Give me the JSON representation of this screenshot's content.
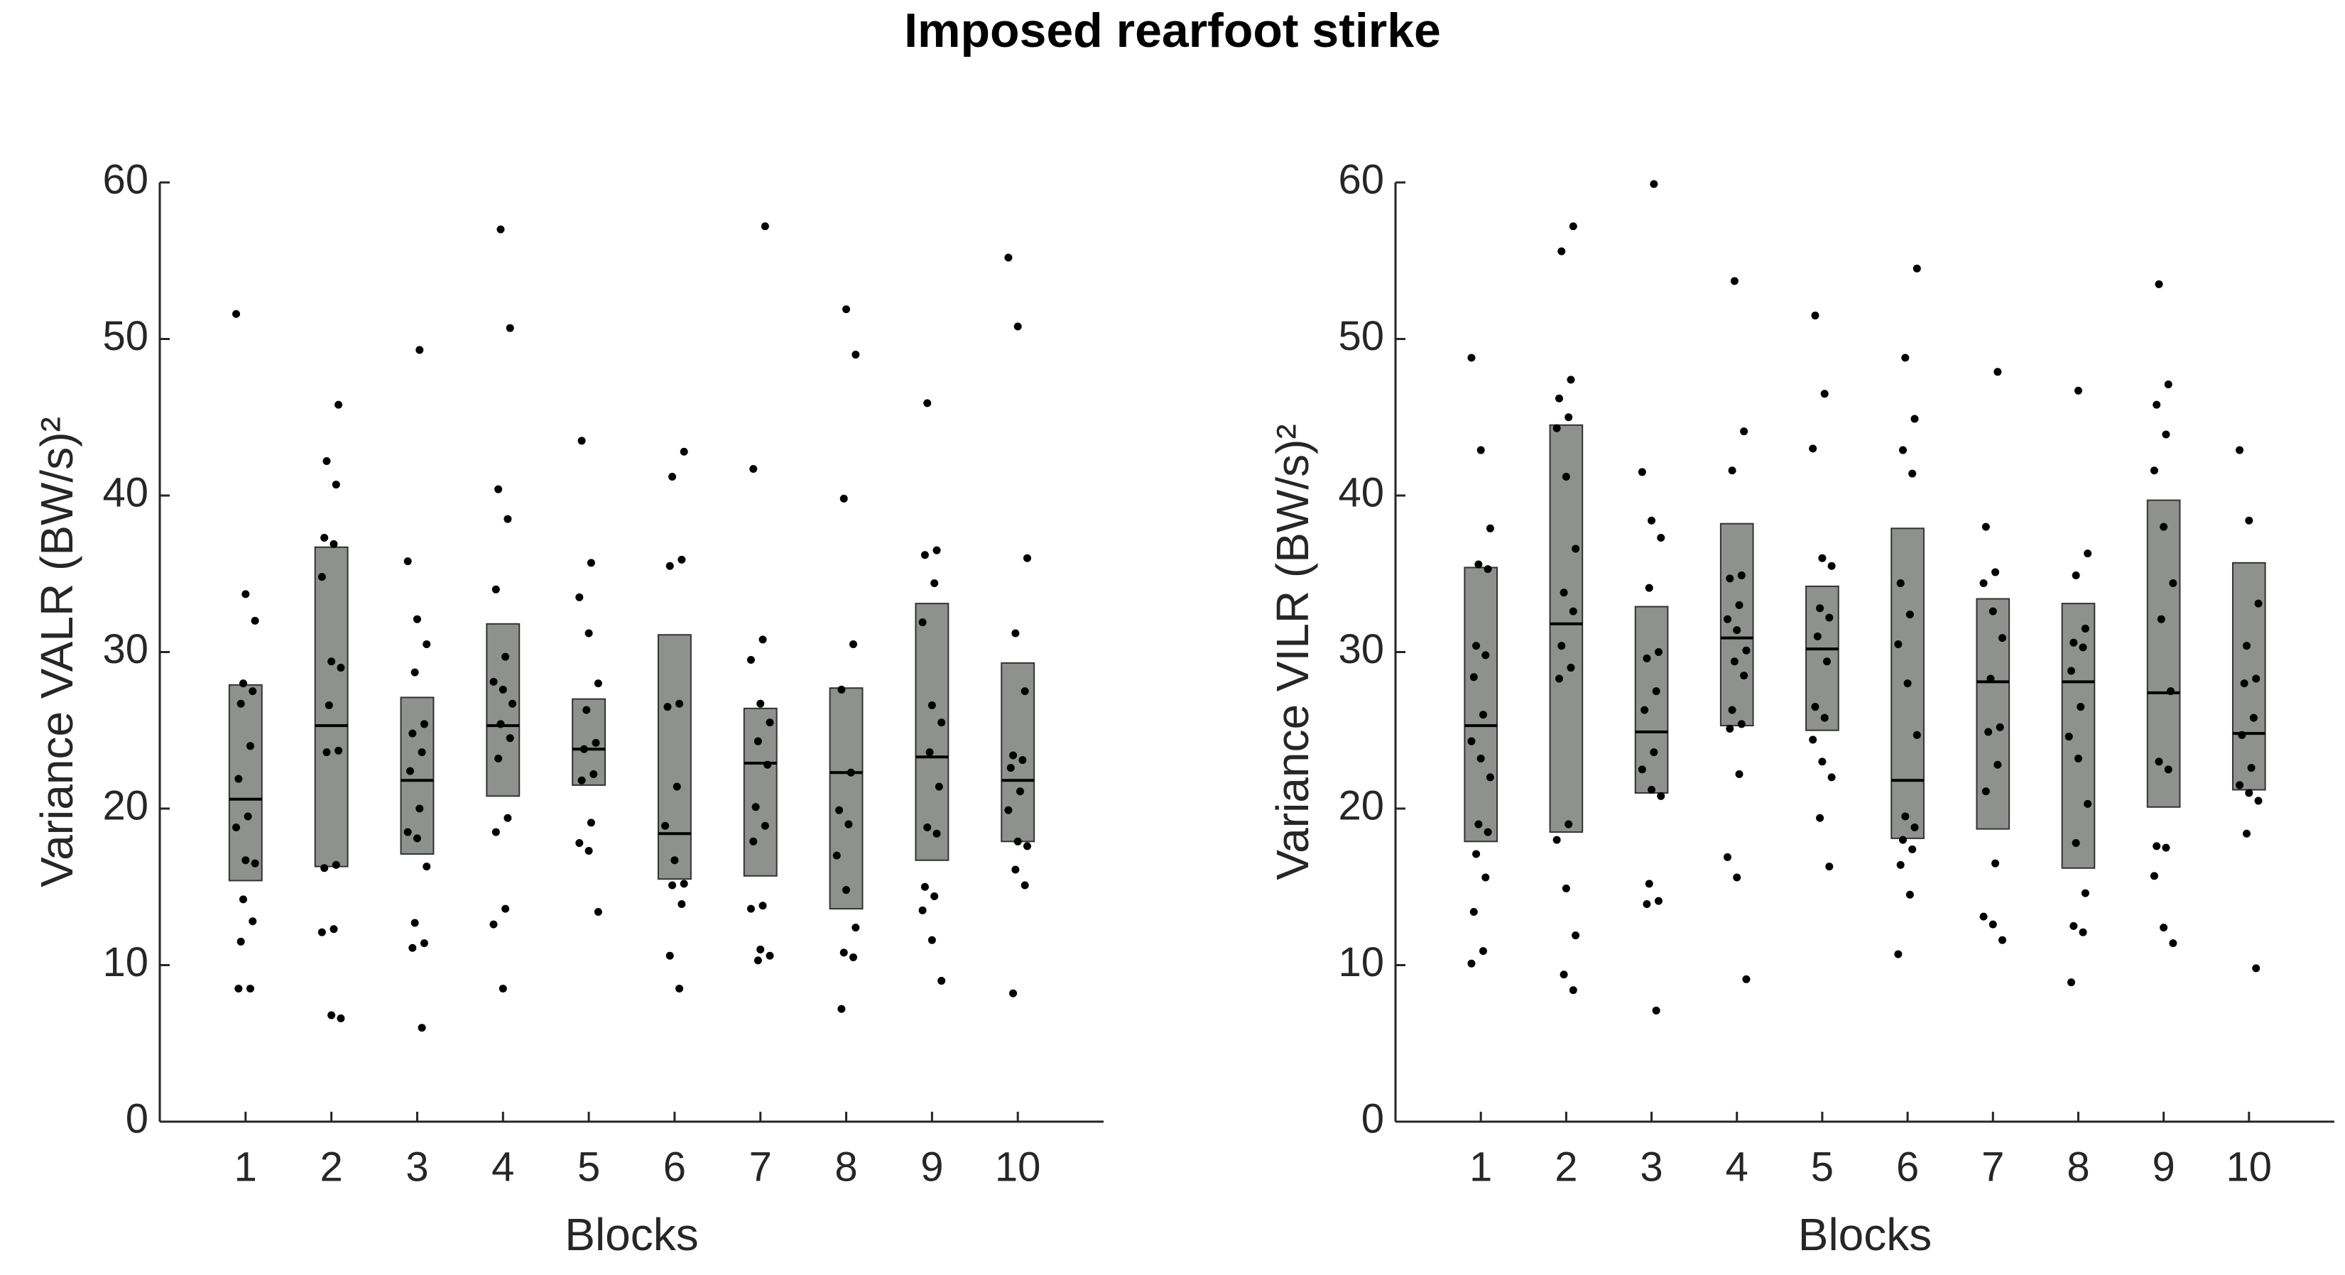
{
  "title": "Imposed rearfoot stirke",
  "chart_data": [
    {
      "type": "box",
      "xlabel": "Blocks",
      "ylabel": "Variance VALR (BW/s)²",
      "x": [
        1,
        2,
        3,
        4,
        5,
        6,
        7,
        8,
        9,
        10
      ],
      "xlim": [
        0,
        11
      ],
      "xticks": [
        1,
        2,
        3,
        4,
        5,
        6,
        7,
        8,
        9,
        10
      ],
      "ylim": [
        0,
        60
      ],
      "yticks": [
        0,
        10,
        20,
        30,
        40,
        50,
        60
      ],
      "box_color": "#8e918e",
      "point_color": "#000000",
      "q1": [
        15.4,
        16.3,
        17.1,
        20.8,
        21.5,
        15.5,
        15.7,
        13.6,
        16.7,
        17.9
      ],
      "median": [
        20.6,
        25.3,
        21.8,
        25.3,
        23.8,
        18.4,
        22.9,
        22.3,
        23.3,
        21.8
      ],
      "q3": [
        27.9,
        36.7,
        27.1,
        31.8,
        27.0,
        31.1,
        26.4,
        27.7,
        33.1,
        29.3
      ],
      "points": [
        [
          51.6,
          33.7,
          32.0,
          28.0,
          27.5,
          26.7,
          24.0,
          21.9,
          19.5,
          18.8,
          16.7,
          16.5,
          14.2,
          12.8,
          11.5,
          8.5,
          8.5
        ],
        [
          45.8,
          42.2,
          40.7,
          37.3,
          36.9,
          34.8,
          29.4,
          29.0,
          26.6,
          23.7,
          23.6,
          16.4,
          16.2,
          12.3,
          12.1,
          6.8,
          6.6
        ],
        [
          49.3,
          35.8,
          32.1,
          30.5,
          28.7,
          25.4,
          24.8,
          23.6,
          22.4,
          20.0,
          18.5,
          18.1,
          16.3,
          12.7,
          11.4,
          11.1,
          6.0
        ],
        [
          57.0,
          50.7,
          40.4,
          38.5,
          34.0,
          29.7,
          28.1,
          27.6,
          26.7,
          25.4,
          24.5,
          23.2,
          19.4,
          18.5,
          13.6,
          12.6,
          8.5
        ],
        [
          43.5,
          35.7,
          33.5,
          31.2,
          28.0,
          26.3,
          24.2,
          23.8,
          22.2,
          21.8,
          19.1,
          17.8,
          17.3,
          13.4
        ],
        [
          42.8,
          41.2,
          35.9,
          35.5,
          26.7,
          26.5,
          21.4,
          18.9,
          16.7,
          15.2,
          15.1,
          13.9,
          10.6,
          8.5
        ],
        [
          57.2,
          41.7,
          30.8,
          29.5,
          26.7,
          25.5,
          24.3,
          22.8,
          20.1,
          18.9,
          17.9,
          13.8,
          13.6,
          11.0,
          10.6,
          10.3
        ],
        [
          51.9,
          49.0,
          39.8,
          30.5,
          27.6,
          22.3,
          19.9,
          19.0,
          17.0,
          14.8,
          12.4,
          10.8,
          10.5,
          7.2
        ],
        [
          45.9,
          36.5,
          36.2,
          34.4,
          31.9,
          26.6,
          25.5,
          23.6,
          21.4,
          18.8,
          18.4,
          15.0,
          14.4,
          13.5,
          11.6,
          9.0
        ],
        [
          55.2,
          50.8,
          36.0,
          31.2,
          27.5,
          23.4,
          23.1,
          22.6,
          21.1,
          19.9,
          17.9,
          17.6,
          16.1,
          15.1,
          8.2
        ]
      ]
    },
    {
      "type": "box",
      "xlabel": "Blocks",
      "ylabel": "Variance VILR (BW/s)²",
      "x": [
        1,
        2,
        3,
        4,
        5,
        6,
        7,
        8,
        9,
        10
      ],
      "xlim": [
        0,
        11
      ],
      "xticks": [
        1,
        2,
        3,
        4,
        5,
        6,
        7,
        8,
        9,
        10
      ],
      "ylim": [
        0,
        60
      ],
      "yticks": [
        0,
        10,
        20,
        30,
        40,
        50,
        60
      ],
      "box_color": "#8e918e",
      "point_color": "#000000",
      "q1": [
        17.9,
        18.5,
        21.0,
        25.3,
        25.0,
        18.1,
        18.7,
        16.2,
        20.1,
        21.2
      ],
      "median": [
        25.3,
        31.8,
        24.9,
        30.9,
        30.2,
        21.8,
        28.1,
        28.1,
        27.4,
        24.8
      ],
      "q3": [
        35.4,
        44.5,
        32.9,
        38.2,
        34.2,
        37.9,
        33.4,
        33.1,
        39.7,
        35.7
      ],
      "points": [
        [
          48.8,
          42.9,
          37.9,
          35.6,
          35.3,
          30.4,
          29.8,
          28.4,
          26.0,
          24.3,
          23.2,
          22.0,
          19.0,
          18.5,
          17.1,
          15.6,
          13.4,
          10.9,
          10.1
        ],
        [
          57.2,
          55.6,
          47.4,
          46.2,
          45.0,
          44.3,
          41.2,
          36.6,
          33.8,
          32.6,
          30.4,
          29.0,
          28.3,
          19.0,
          18.0,
          14.9,
          11.9,
          9.4,
          8.4
        ],
        [
          59.9,
          41.5,
          38.4,
          37.3,
          34.1,
          30.0,
          29.6,
          27.5,
          26.3,
          23.6,
          22.5,
          21.2,
          20.8,
          15.2,
          14.1,
          13.9,
          7.1
        ],
        [
          53.7,
          44.1,
          41.6,
          34.9,
          34.7,
          33.0,
          32.1,
          31.4,
          30.1,
          29.4,
          28.5,
          26.3,
          25.4,
          25.1,
          22.2,
          16.9,
          15.6,
          9.1
        ],
        [
          51.5,
          46.5,
          43.0,
          36.0,
          35.5,
          32.8,
          32.2,
          31.0,
          29.4,
          26.5,
          25.8,
          24.4,
          23.0,
          22.0,
          19.4,
          16.3
        ],
        [
          54.5,
          48.8,
          44.9,
          42.9,
          41.4,
          34.4,
          32.4,
          30.5,
          28.0,
          24.7,
          19.5,
          18.8,
          18.0,
          17.4,
          16.4,
          14.5,
          10.7
        ],
        [
          47.9,
          38.0,
          35.1,
          34.4,
          32.6,
          30.9,
          28.3,
          25.2,
          24.9,
          22.8,
          21.1,
          16.5,
          13.1,
          12.6,
          11.6
        ],
        [
          46.7,
          36.3,
          34.9,
          31.5,
          30.6,
          30.3,
          28.8,
          26.5,
          24.6,
          23.2,
          20.3,
          17.8,
          14.6,
          12.5,
          12.1,
          8.9
        ],
        [
          53.5,
          47.1,
          45.8,
          43.9,
          41.6,
          38.0,
          34.4,
          32.1,
          27.5,
          23.0,
          22.5,
          17.6,
          17.5,
          15.7,
          12.4,
          11.4
        ],
        [
          42.9,
          38.4,
          33.1,
          30.4,
          28.3,
          28.0,
          25.8,
          24.7,
          22.6,
          21.5,
          21.0,
          20.5,
          18.4,
          9.8
        ]
      ]
    }
  ]
}
